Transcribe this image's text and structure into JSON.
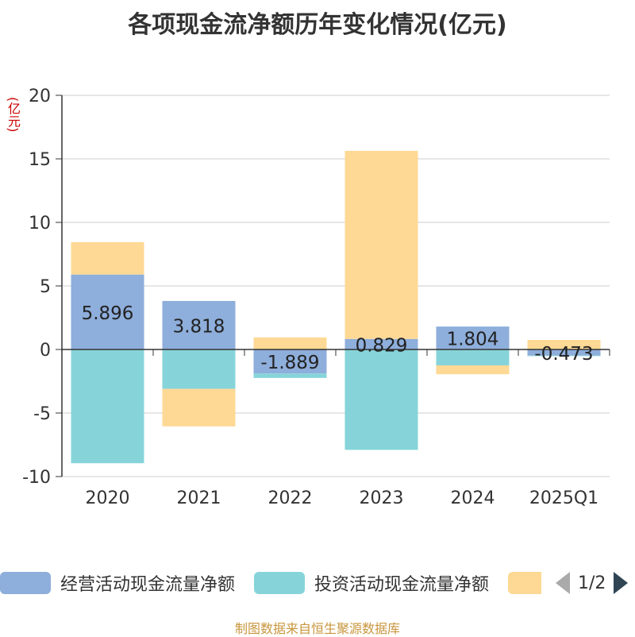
{
  "chart_data": {
    "type": "bar",
    "stacked": true,
    "title": "各项现金流净额历年变化情况(亿元)",
    "unit_label": "(亿元)",
    "categories": [
      "2020",
      "2021",
      "2022",
      "2023",
      "2024",
      "2025Q1"
    ],
    "ylim": [
      -10,
      20
    ],
    "yticks": [
      20,
      15,
      10,
      5,
      0,
      -5,
      -10
    ],
    "grid": true,
    "legend_position": "bottom",
    "series": [
      {
        "name": "经营活动现金流量净额",
        "color": "#8eaedb",
        "values": [
          5.896,
          3.818,
          -1.889,
          0.829,
          1.804,
          -0.473
        ],
        "show_labels": true
      },
      {
        "name": "投资活动现金流量净额",
        "color": "#86d4d9",
        "values": [
          -8.95,
          -3.1,
          -0.35,
          -7.9,
          -1.25,
          -0.05
        ],
        "show_labels": false
      },
      {
        "name": "",
        "color": "#fed995",
        "values": [
          2.55,
          -2.95,
          0.95,
          14.8,
          -0.7,
          0.75
        ],
        "show_labels": false
      }
    ]
  },
  "legend": {
    "items": [
      {
        "label": "经营活动现金流量净额"
      },
      {
        "label": "投资活动现金流量净额"
      },
      {
        "label": ""
      }
    ],
    "page": "1/2"
  },
  "source": "制图数据来自恒生聚源数据库"
}
